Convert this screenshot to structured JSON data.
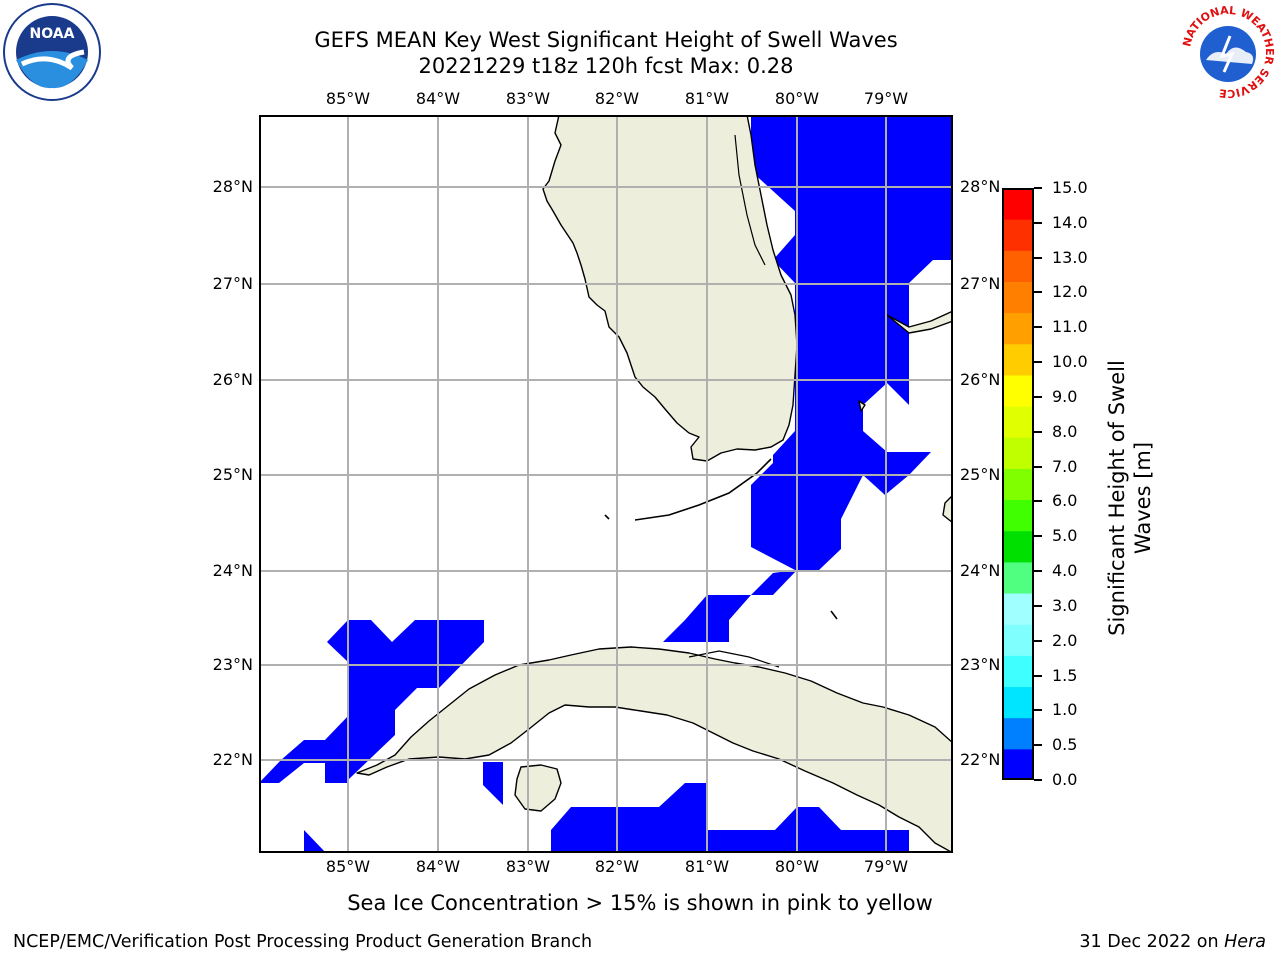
{
  "title": {
    "line1": "GEFS MEAN Key West Significant Height of Swell Waves",
    "line2": "20221229 t18z 120h fcst   Max: 0.28"
  },
  "axes": {
    "lon_ticks": [
      "85°W",
      "84°W",
      "83°W",
      "82°W",
      "81°W",
      "80°W",
      "79°W"
    ],
    "lat_ticks": [
      "28°N",
      "27°N",
      "26°N",
      "25°N",
      "24°N",
      "23°N",
      "22°N"
    ]
  },
  "colorbar": {
    "label": "Significant Height of Swell Waves [m]",
    "ticks": [
      "15.0",
      "14.0",
      "13.0",
      "12.0",
      "11.0",
      "10.0",
      "9.0",
      "8.0",
      "7.0",
      "6.0",
      "5.0",
      "4.0",
      "3.0",
      "2.0",
      "1.5",
      "1.0",
      "0.5",
      "0.0"
    ],
    "colors": [
      "#0000ff",
      "#0080ff",
      "#00e5ff",
      "#40ffff",
      "#80ffff",
      "#a0ffff",
      "#50ff80",
      "#00e000",
      "#40ff00",
      "#80ff00",
      "#c0ff00",
      "#e0ff00",
      "#ffff00",
      "#ffcc00",
      "#ffa000",
      "#ff8000",
      "#ff6000",
      "#ff3000",
      "#ff0000"
    ]
  },
  "colors": {
    "land": "#eeeedd",
    "water_swell": "#0000ff",
    "grid": "#b0b0b0"
  },
  "logos": {
    "noaa": "NOAA",
    "nws_ring": "NATIONAL WEATHER SERVICE"
  },
  "note": "Sea Ice Concentration > 15% is shown in pink to yellow",
  "footer": {
    "left": "NCEP/EMC/Verification Post Processing Product Generation Branch",
    "date": "31 Dec 2022 on ",
    "machine": "Hera"
  }
}
